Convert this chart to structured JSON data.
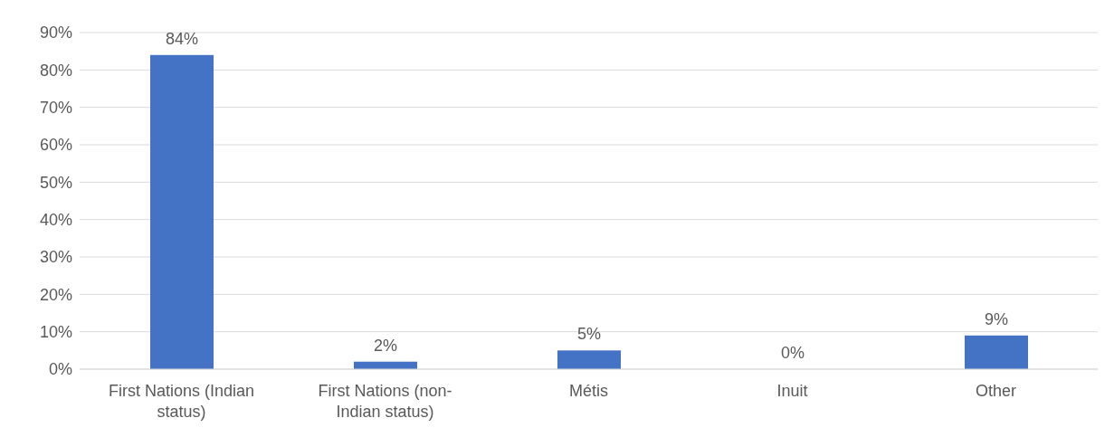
{
  "chart_data": {
    "type": "bar",
    "categories": [
      "First Nations (Indian status)",
      "First Nations (non-Indian status)",
      "Métis",
      "Inuit",
      "Other"
    ],
    "values": [
      84,
      2,
      5,
      0,
      9
    ],
    "value_labels": [
      "84%",
      "2%",
      "5%",
      "0%",
      "9%"
    ],
    "color": "#4472c4",
    "ylim": [
      0,
      90
    ],
    "yticks": [
      {
        "value": 0,
        "label": "0%"
      },
      {
        "value": 10,
        "label": "10%"
      },
      {
        "value": 20,
        "label": "20%"
      },
      {
        "value": 30,
        "label": "30%"
      },
      {
        "value": 40,
        "label": "40%"
      },
      {
        "value": 50,
        "label": "50%"
      },
      {
        "value": 60,
        "label": "60%"
      },
      {
        "value": 70,
        "label": "70%"
      },
      {
        "value": 80,
        "label": "80%"
      },
      {
        "value": 90,
        "label": "90%"
      }
    ],
    "grid": "y",
    "legend": false
  }
}
